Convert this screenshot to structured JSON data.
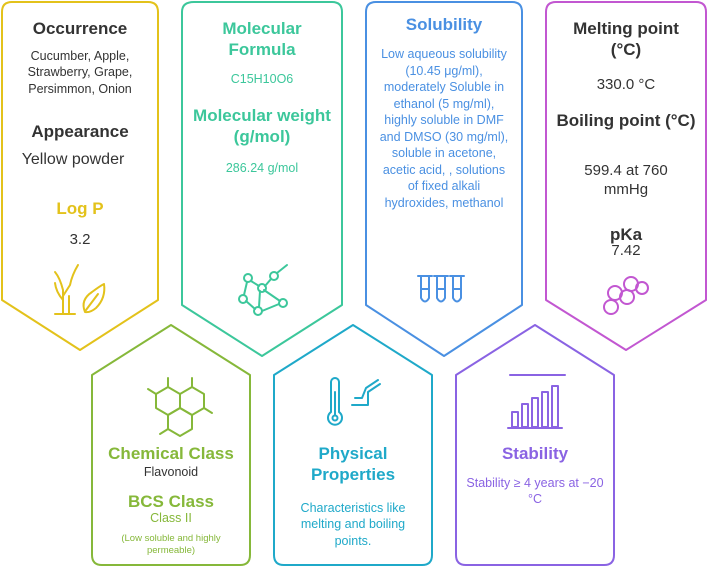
{
  "colors": {
    "yellow": "#e3c21b",
    "green": "#3cc79b",
    "blue": "#4a90e2",
    "magenta": "#c257d1",
    "lime": "#86b83a",
    "cyan": "#1fa9c9",
    "purple": "#8a63e3",
    "text_dark": "#333333"
  },
  "occurrence": {
    "title": "Occurrence",
    "text": "Cucumber, Apple, Strawberry, Grape, Persimmon, Onion",
    "appearance_title": "Appearance",
    "appearance_value": "Yellow powder",
    "logp_title": "Log P",
    "logp_value": "3.2",
    "icon": "plant-leaf-icon"
  },
  "molecular": {
    "formula_title": "Molecular Formula",
    "formula_value": "C15H10O6",
    "weight_title": "Molecular weight (g/mol)",
    "weight_value": "286.24 g/mol",
    "icon": "molecule-network-icon"
  },
  "solubility": {
    "title": "Solubility",
    "text": "Low aqueous solubility (10.45 μg/ml), moderately Soluble in ethanol (5 mg/ml), highly soluble in DMF and DMSO (30 mg/ml), soluble in acetone, acetic acid, , solutions of fixed alkali hydroxides, methanol",
    "icon": "test-tubes-icon"
  },
  "melting": {
    "melting_title": "Melting point (°C)",
    "melting_value": "330.0 °C",
    "boiling_title": "Boiling point (°C)",
    "boiling_value": "599.4 at 760 mmHg",
    "pka_title": "pKa",
    "pka_value": "7.42",
    "icon": "molecule-chain-icon"
  },
  "chemical": {
    "class_title": "Chemical Class",
    "class_value": "Flavonoid",
    "bcs_title": "BCS Class",
    "bcs_value": "Class II",
    "bcs_note": "(Low soluble and highly permeable)",
    "icon": "hexagon-structure-icon"
  },
  "physical": {
    "title": "Physical Properties",
    "text": "Characteristics like melting and boiling points.",
    "icon": "thermometer-graph-icon"
  },
  "stability": {
    "title": "Stability",
    "text": "Stability ≥ 4 years at −20 °C",
    "icon": "bar-chart-icon"
  }
}
